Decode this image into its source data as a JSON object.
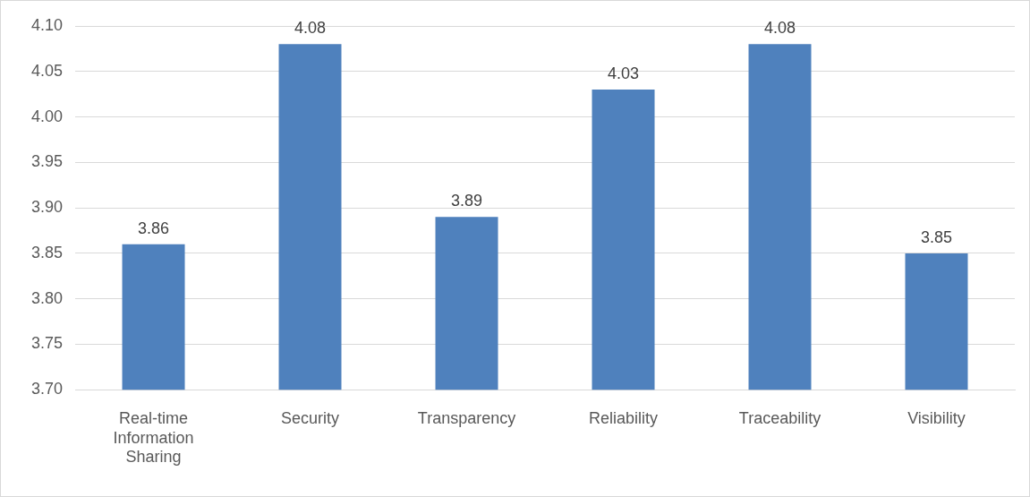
{
  "chart_data": {
    "type": "bar",
    "categories": [
      "Real-time Information Sharing",
      "Security",
      "Transparency",
      "Reliability",
      "Traceability",
      "Visibility"
    ],
    "values": [
      3.86,
      4.08,
      3.89,
      4.03,
      4.08,
      3.85
    ],
    "color": "#4f81bd",
    "ylim": [
      3.7,
      4.1
    ],
    "yticks": [
      {
        "value": 3.7,
        "label": "3.70"
      },
      {
        "value": 3.75,
        "label": "3.75"
      },
      {
        "value": 3.8,
        "label": "3.80"
      },
      {
        "value": 3.85,
        "label": "3.85"
      },
      {
        "value": 3.9,
        "label": "3.90"
      },
      {
        "value": 3.95,
        "label": "3.95"
      },
      {
        "value": 4.0,
        "label": "4.00"
      },
      {
        "value": 4.05,
        "label": "4.05"
      },
      {
        "value": 4.1,
        "label": "4.10"
      }
    ],
    "grid": "y",
    "data_labels": true
  }
}
